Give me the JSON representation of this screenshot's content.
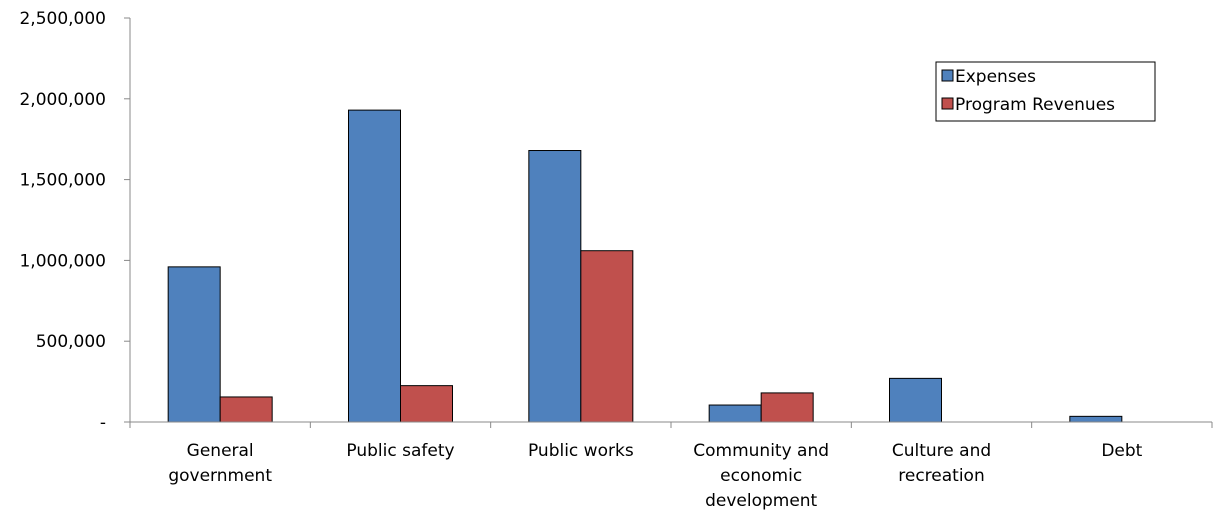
{
  "chart_data": {
    "type": "bar",
    "title": "",
    "xlabel": "",
    "ylabel": "",
    "categories": [
      [
        "General",
        "government"
      ],
      [
        "Public safety"
      ],
      [
        "Public works"
      ],
      [
        "Community and",
        "economic",
        "development"
      ],
      [
        "Culture and",
        "recreation"
      ],
      [
        "Debt"
      ]
    ],
    "series": [
      {
        "name": "Expenses",
        "color": "#4F81BD",
        "values": [
          960000,
          1930000,
          1680000,
          105000,
          270000,
          35000
        ]
      },
      {
        "name": "Program Revenues",
        "color": "#C0504D",
        "values": [
          155000,
          225000,
          1060000,
          180000,
          0,
          0
        ]
      }
    ],
    "ylim": [
      0,
      2500000
    ],
    "yticks": [
      0,
      500000,
      1000000,
      1500000,
      2000000,
      2500000
    ],
    "ytick_labels": [
      "-",
      "500,000",
      "1,000,000",
      "1,500,000",
      "2,000,000",
      "2,500,000"
    ],
    "grid": false,
    "legend_position": "top-right"
  }
}
